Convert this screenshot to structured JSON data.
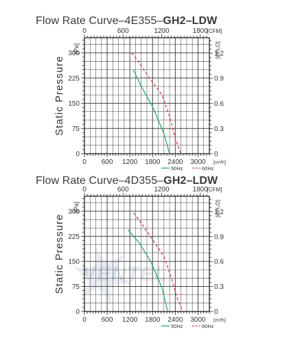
{
  "colors": {
    "s50": "#2aa86c",
    "s60": "#d9393b",
    "grid": "#444444",
    "text": "#333333"
  },
  "chart_data": [
    {
      "type": "line",
      "title_prefix": "Flow Rate Curve–4E355–",
      "title_model": "GH2–LDW",
      "ylabel": "Static Pressure",
      "y_unit": "[Pa]",
      "y2_unit": "[inH₂O]",
      "x_unit": "[m³/h]",
      "x2_unit": "[CFM]",
      "ylim": [
        0,
        345
      ],
      "xlim": [
        0,
        3300
      ],
      "x_ticks": [
        0,
        600,
        1200,
        1800,
        2400,
        3000
      ],
      "x_tick_labels": [
        "0",
        "600",
        "1200",
        "1800",
        "2400",
        "3000"
      ],
      "x2_ticks": [
        0,
        600,
        1200,
        1800
      ],
      "x2_tick_labels": [
        "0",
        "600",
        "1200",
        "1800"
      ],
      "y_ticks": [
        0,
        75,
        150,
        225,
        300
      ],
      "y_tick_labels": [
        "0",
        "75",
        "150",
        "225",
        "300"
      ],
      "y2_ticks": [
        0,
        0.3,
        0.6,
        0.9,
        1.2
      ],
      "y2_tick_labels": [
        "0",
        "0.3",
        "0.6",
        "0.9",
        "1.2"
      ],
      "grid": true,
      "legend": "bottom-right",
      "series": [
        {
          "name": "50Hz",
          "x": [
            1290,
            1500,
            1800,
            2100,
            2250
          ],
          "y": [
            250,
            200,
            140,
            60,
            0
          ]
        },
        {
          "name": "60Hz",
          "x": [
            1250,
            1450,
            1750,
            2050,
            2250,
            2400,
            2550
          ],
          "y": [
            300,
            270,
            220,
            175,
            110,
            45,
            0
          ]
        }
      ]
    },
    {
      "type": "line",
      "title_prefix": "Flow Rate Curve–4D355–",
      "title_model": "GH2–LDW",
      "ylabel": "Static Pressure",
      "y_unit": "[Pa]",
      "y2_unit": "[inH₂O]",
      "x_unit": "[m³/h]",
      "x2_unit": "[CFM]",
      "ylim": [
        0,
        345
      ],
      "xlim": [
        0,
        3300
      ],
      "x_ticks": [
        0,
        600,
        1200,
        1800,
        2400,
        3000
      ],
      "x_tick_labels": [
        "0",
        "600",
        "1200",
        "1800",
        "2400",
        "3000"
      ],
      "x2_ticks": [
        0,
        600,
        1200,
        1800
      ],
      "x2_tick_labels": [
        "0",
        "600",
        "1200",
        "1800"
      ],
      "y_ticks": [
        0,
        75,
        150,
        225,
        300
      ],
      "y_tick_labels": [
        "0",
        "75",
        "150",
        "225",
        "300"
      ],
      "y2_ticks": [
        0,
        0.3,
        0.6,
        0.9,
        1.2
      ],
      "y2_tick_labels": [
        "0",
        "0.3",
        "0.6",
        "0.9",
        "1.2"
      ],
      "grid": true,
      "legend": "bottom-right",
      "series": [
        {
          "name": "50Hz",
          "x": [
            1150,
            1450,
            1750,
            2050,
            2200
          ],
          "y": [
            245,
            205,
            150,
            70,
            0
          ]
        },
        {
          "name": "60Hz",
          "x": [
            1300,
            1500,
            1800,
            2100,
            2300,
            2450,
            2600
          ],
          "y": [
            295,
            265,
            215,
            165,
            100,
            40,
            0
          ]
        }
      ]
    }
  ],
  "watermark": {
    "text": "VENTEL"
  }
}
